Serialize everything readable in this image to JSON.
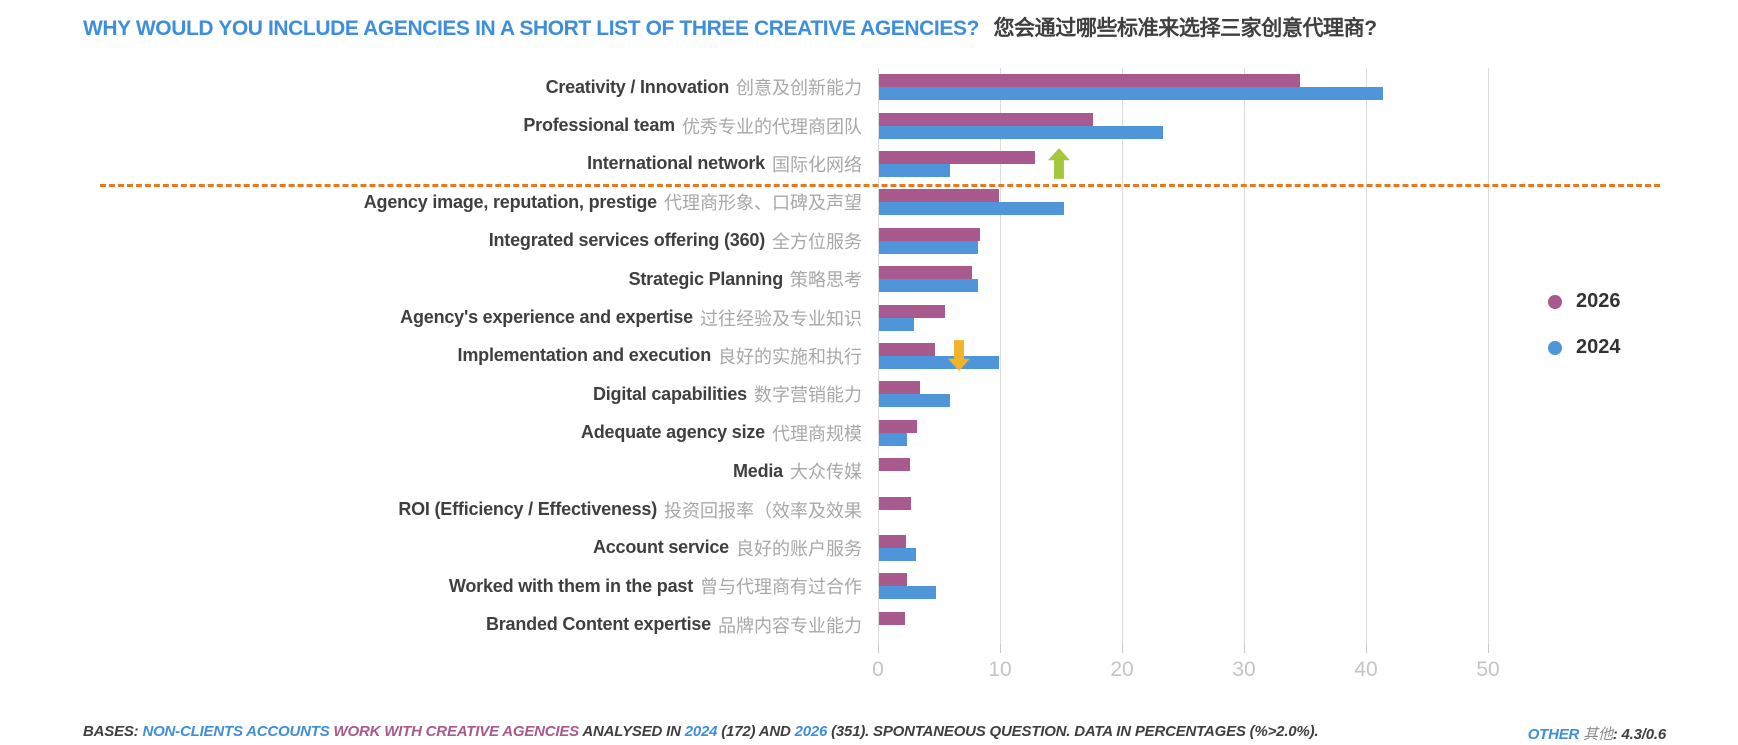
{
  "title": {
    "en": "WHY WOULD YOU INCLUDE AGENCIES IN A SHORT LIST OF THREE CREATIVE AGENCIES?",
    "zh": "您会通过哪些标准来选择三家创意代理商?"
  },
  "chart_data": {
    "type": "bar",
    "orientation": "horizontal",
    "unit": "percent",
    "grid": true,
    "legend_position": "right",
    "xlim": [
      0,
      55
    ],
    "xticks": [
      0,
      10,
      20,
      30,
      40,
      50
    ],
    "categories": [
      {
        "en": "Creativity / Innovation",
        "zh": "创意及创新能力"
      },
      {
        "en": "Professional team",
        "zh": "优秀专业的代理商团队"
      },
      {
        "en": "International network",
        "zh": "国际化网络"
      },
      {
        "en": "Agency image, reputation, prestige",
        "zh": "代理商形象、口碑及声望"
      },
      {
        "en": "Integrated services offering (360)",
        "zh": "全方位服务"
      },
      {
        "en": "Strategic Planning",
        "zh": "策略思考"
      },
      {
        "en": "Agency's experience and expertise",
        "zh": "过往经验及专业知识"
      },
      {
        "en": "Implementation and execution",
        "zh": "良好的实施和执行"
      },
      {
        "en": "Digital capabilities",
        "zh": "数字营销能力"
      },
      {
        "en": "Adequate agency size",
        "zh": "代理商规模"
      },
      {
        "en": "Media",
        "zh": "大众传媒"
      },
      {
        "en": "ROI (Efficiency / Effectiveness)",
        "zh": "投资回报率（效率及效果"
      },
      {
        "en": "Account service",
        "zh": "良好的账户服务"
      },
      {
        "en": "Worked with them in the past",
        "zh": "曾与代理商有过合作"
      },
      {
        "en": "Branded Content expertise",
        "zh": "品牌内容专业能力"
      }
    ],
    "series": [
      {
        "name": "2026",
        "color": "#a85a8e",
        "values": [
          34.5,
          17.5,
          12.8,
          9.8,
          8.3,
          7.6,
          5.4,
          4.6,
          3.4,
          3.1,
          2.5,
          2.6,
          2.2,
          2.3,
          2.1
        ]
      },
      {
        "name": "2024",
        "color": "#4e95d9",
        "values": [
          41.3,
          23.3,
          5.8,
          15.2,
          8.1,
          8.1,
          2.9,
          9.8,
          5.8,
          2.3,
          null,
          null,
          3.0,
          4.7,
          null
        ]
      }
    ],
    "annotations": [
      {
        "type": "arrow-up",
        "category_index": 2,
        "color": "#a4c73c"
      },
      {
        "type": "arrow-down",
        "category_index": 7,
        "color": "#f0b32a"
      },
      {
        "type": "dashed-separator",
        "after_category_index": 2,
        "color": "#e87722"
      }
    ]
  },
  "legend": [
    {
      "label": "2026",
      "color": "#a85a8e"
    },
    {
      "label": "2024",
      "color": "#4e95d9"
    }
  ],
  "footer": {
    "left_segments": [
      {
        "text": "BASES: ",
        "color": "#3f3f3f"
      },
      {
        "text": "NON-CLIENTS ACCOUNTS ",
        "color": "#3e8ede"
      },
      {
        "text": "WORK WITH CREATIVE AGENCIES ",
        "color": "#a85a8e"
      },
      {
        "text": "ANALYSED IN ",
        "color": "#3f3f3f"
      },
      {
        "text": "2024",
        "color": "#3e8ede"
      },
      {
        "text": " (172) AND ",
        "color": "#3f3f3f"
      },
      {
        "text": "2026",
        "color": "#3e8ede"
      },
      {
        "text": " (351). SPONTANEOUS QUESTION. DATA IN PERCENTAGES (%>2.0%).",
        "color": "#3f3f3f"
      }
    ],
    "right_segments": [
      {
        "text": "OTHER ",
        "color": "#3e8ede",
        "bold": true
      },
      {
        "text": "其他",
        "color": "#8c8c8c",
        "bold": false
      },
      {
        "text": ": 4.3/0.6",
        "color": "#3f3f3f",
        "bold": true
      }
    ]
  },
  "colors": {
    "accent_blue": "#3e8ede",
    "bar_2026": "#a85a8e",
    "bar_2024": "#4e95d9",
    "separator_orange": "#e87722",
    "arrow_up_green": "#a4c73c",
    "arrow_down_yellow": "#f0b32a",
    "gridline": "#dcdcdc",
    "axis_text": "#c5c5c5"
  }
}
